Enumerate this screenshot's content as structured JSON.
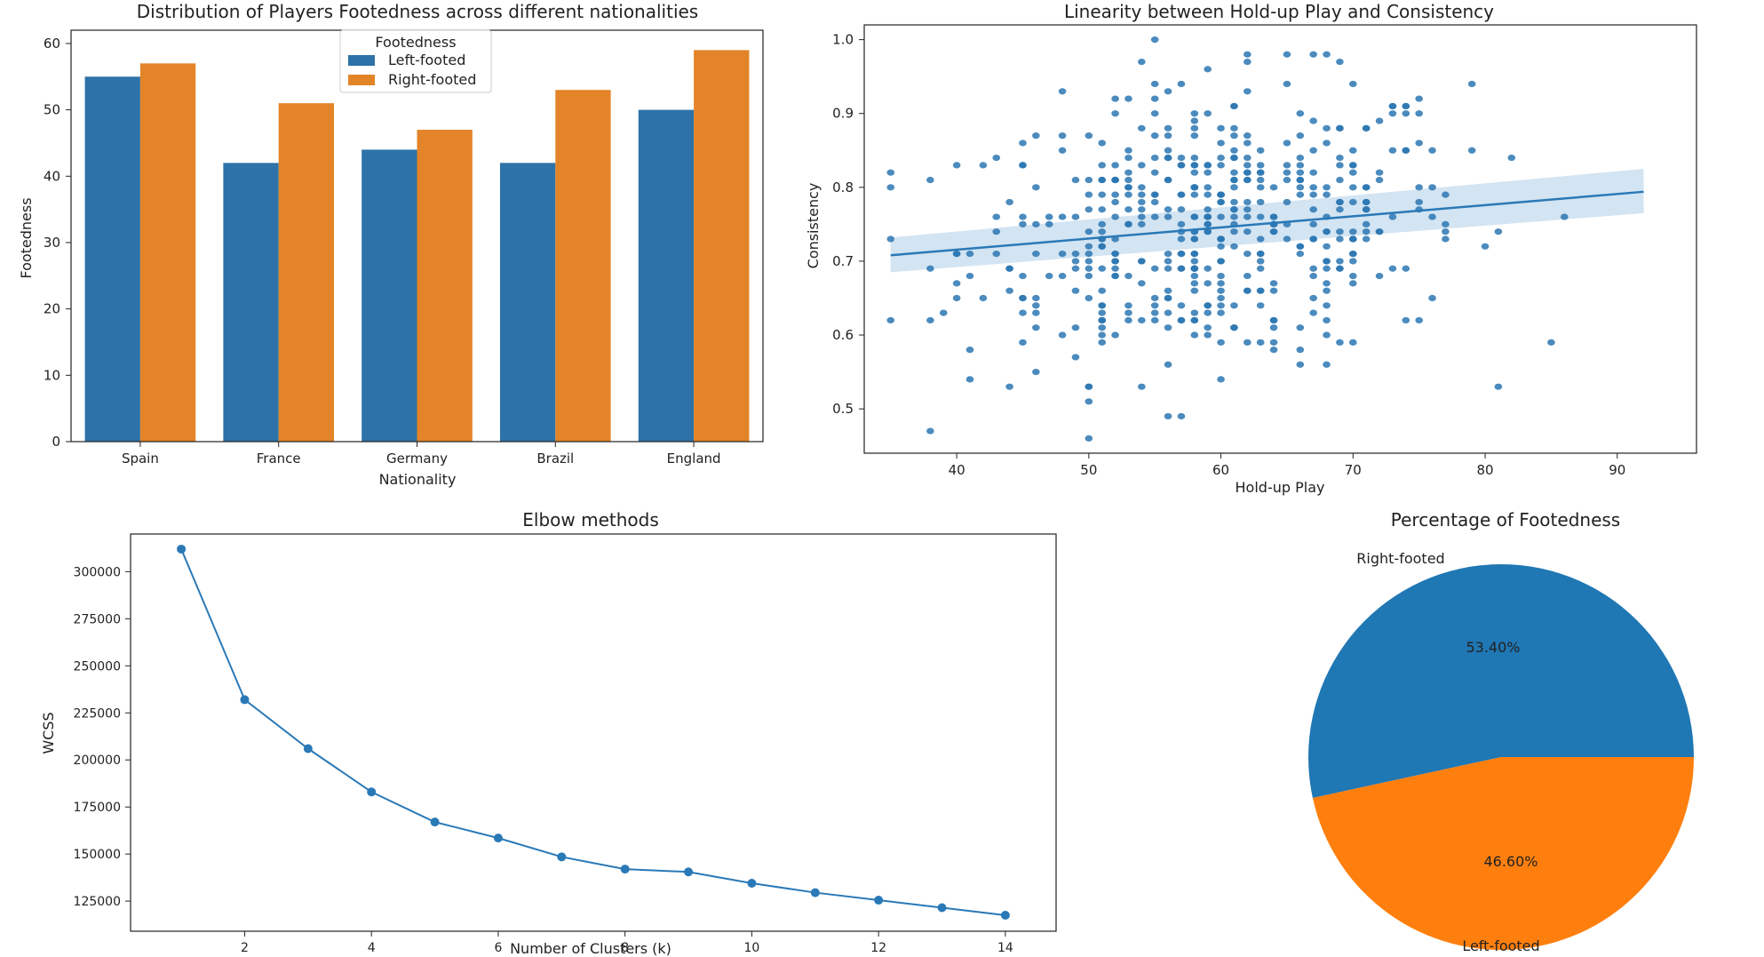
{
  "colors": {
    "blue": "#2d72a8",
    "orange": "#e38428",
    "scatter": "#2b77b3",
    "line": "#2a79b7",
    "ci": "#aecde8",
    "pie_blue": "#1f77b4",
    "pie_orange": "#ff7f0e"
  },
  "chart_data": [
    {
      "type": "bar",
      "title": "Distribution of Players Footedness across different nationalities",
      "xlabel": "Nationality",
      "ylabel": "Footedness",
      "categories": [
        "Spain",
        "France",
        "Germany",
        "Brazil",
        "England"
      ],
      "series": [
        {
          "name": "Left-footed",
          "values": [
            55,
            42,
            44,
            42,
            50
          ]
        },
        {
          "name": "Right-footed",
          "values": [
            57,
            51,
            47,
            53,
            59
          ]
        }
      ],
      "ylim": [
        0,
        62
      ],
      "yticks": [
        0,
        10,
        20,
        30,
        40,
        50,
        60
      ],
      "legend_title": "Footedness",
      "legend_loc": "top-center"
    },
    {
      "type": "scatter",
      "title": "Linearity between Hold-up Play and Consistency",
      "xlabel": "Hold-up Play",
      "ylabel": "Consistency",
      "xlim": [
        33,
        96
      ],
      "ylim": [
        0.44,
        1.02
      ],
      "xticks": [
        40,
        50,
        60,
        70,
        80,
        90
      ],
      "yticks": [
        0.5,
        0.6,
        0.7,
        0.8,
        0.9,
        1.0
      ],
      "ytick_labels": [
        "0.5",
        "0.6",
        "0.7",
        "0.8",
        "0.9",
        "1.0"
      ],
      "regression": {
        "x": [
          35,
          92
        ],
        "y": [
          0.708,
          0.794
        ],
        "ci_low_start": 0.685,
        "ci_high_start": 0.732,
        "ci_low_end": 0.765,
        "ci_high_end": 0.825
      },
      "n_points": 500,
      "x_mean": 59.5,
      "x_sd": 9.5,
      "y_mean": 0.745,
      "y_sd": 0.095
    },
    {
      "type": "line",
      "title": "Elbow methods",
      "xlabel": "Number of Clusters (k)",
      "ylabel": "WCSS",
      "x": [
        1,
        2,
        3,
        4,
        5,
        6,
        7,
        8,
        9,
        10,
        11,
        12,
        13,
        14
      ],
      "values": [
        312000,
        232000,
        206000,
        183000,
        167000,
        158500,
        148500,
        142000,
        140500,
        134500,
        129500,
        125500,
        121500,
        117500
      ],
      "xlim": [
        0.2,
        14.8
      ],
      "ylim": [
        109000,
        320000
      ],
      "xticks": [
        2,
        4,
        6,
        8,
        10,
        12,
        14
      ],
      "yticks": [
        125000,
        150000,
        175000,
        200000,
        225000,
        250000,
        275000,
        300000
      ]
    },
    {
      "type": "pie",
      "title": "Percentage of Footedness",
      "labels": [
        "Right-footed",
        "Left-footed"
      ],
      "values": [
        53.4,
        46.6
      ],
      "pct_labels": [
        "53.40%",
        "46.60%"
      ]
    }
  ]
}
